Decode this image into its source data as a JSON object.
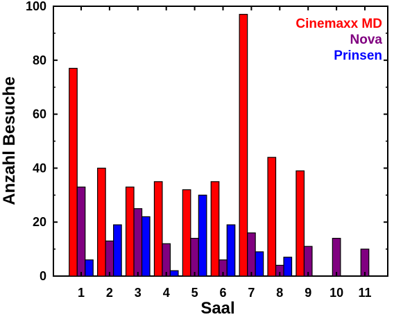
{
  "chart_data": {
    "type": "bar",
    "categories": [
      "1",
      "2",
      "3",
      "4",
      "5",
      "6",
      "7",
      "8",
      "9",
      "10",
      "11"
    ],
    "series": [
      {
        "name": "Cinemaxx MD",
        "color": "#ff0000",
        "values": [
          77,
          40,
          33,
          35,
          32,
          35,
          97,
          44,
          39,
          null,
          null
        ]
      },
      {
        "name": "Nova",
        "color": "#800080",
        "values": [
          33,
          13,
          25,
          12,
          14,
          6,
          16,
          4,
          11,
          14,
          10
        ]
      },
      {
        "name": "Prinsen",
        "color": "#0000ff",
        "values": [
          6,
          19,
          22,
          2,
          30,
          19,
          9,
          7,
          null,
          null,
          null
        ]
      }
    ],
    "xlabel": "Saal",
    "ylabel": "Anzahl Besuche",
    "ylim": [
      0,
      100
    ],
    "yticks": [
      0,
      20,
      40,
      60,
      80,
      100
    ],
    "grid": false,
    "legend_position": "top-right"
  }
}
